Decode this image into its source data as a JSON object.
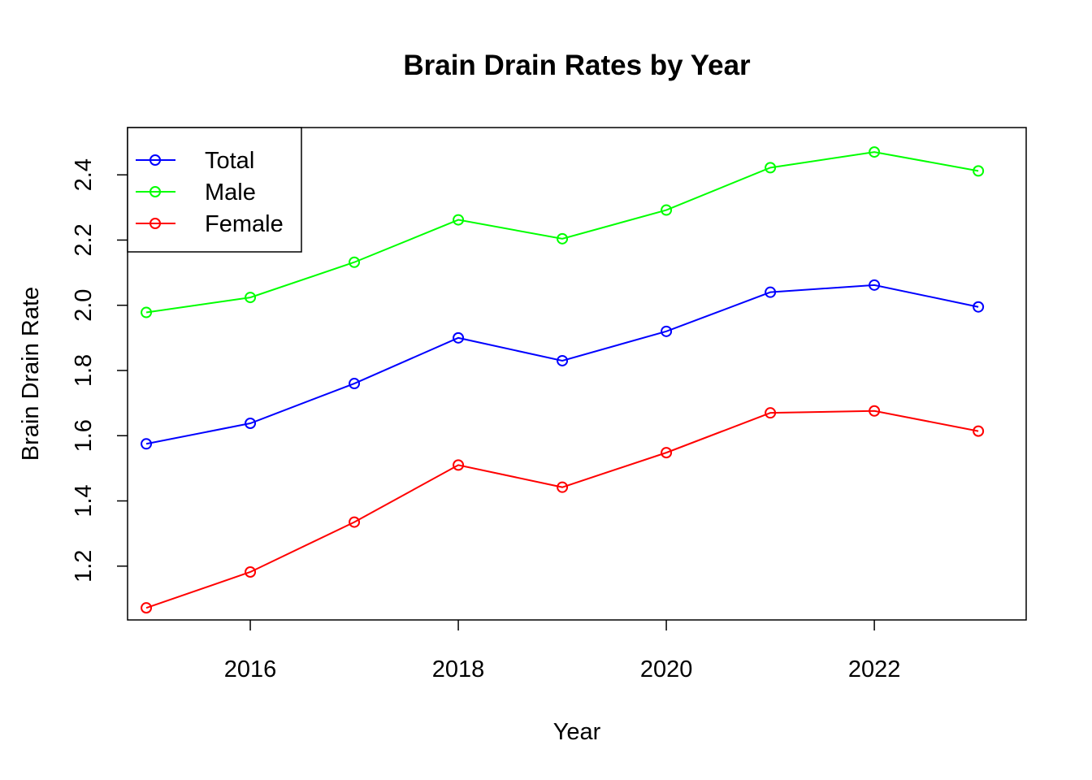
{
  "chart_data": {
    "type": "line",
    "title": "Brain Drain Rates by Year",
    "xlabel": "Year",
    "ylabel": "Brain Drain Rate",
    "x": [
      2015,
      2016,
      2017,
      2018,
      2019,
      2020,
      2021,
      2022,
      2023
    ],
    "x_ticks": [
      2016,
      2018,
      2020,
      2022
    ],
    "x_tick_labels": [
      "2016",
      "2018",
      "2020",
      "2022"
    ],
    "y_ticks": [
      1.2,
      1.4,
      1.6,
      1.8,
      2.0,
      2.2,
      2.4
    ],
    "y_tick_labels": [
      "1.2",
      "1.4",
      "1.6",
      "1.8",
      "2.0",
      "2.2",
      "2.4"
    ],
    "xlim": [
      2014.82,
      2023.46
    ],
    "ylim": [
      1.035,
      2.545
    ],
    "grid": false,
    "legend_position": "top-left",
    "markers": "open-circle",
    "series": [
      {
        "name": "Total",
        "color": "#0000ff",
        "values": [
          1.575,
          1.638,
          1.76,
          1.9,
          1.83,
          1.92,
          2.04,
          2.062,
          1.995
        ]
      },
      {
        "name": "Male",
        "color": "#00ff00",
        "values": [
          1.978,
          2.024,
          2.132,
          2.262,
          2.204,
          2.292,
          2.422,
          2.47,
          2.412
        ]
      },
      {
        "name": "Female",
        "color": "#ff0000",
        "values": [
          1.072,
          1.182,
          1.335,
          1.51,
          1.442,
          1.548,
          1.67,
          1.676,
          1.614
        ]
      }
    ]
  }
}
